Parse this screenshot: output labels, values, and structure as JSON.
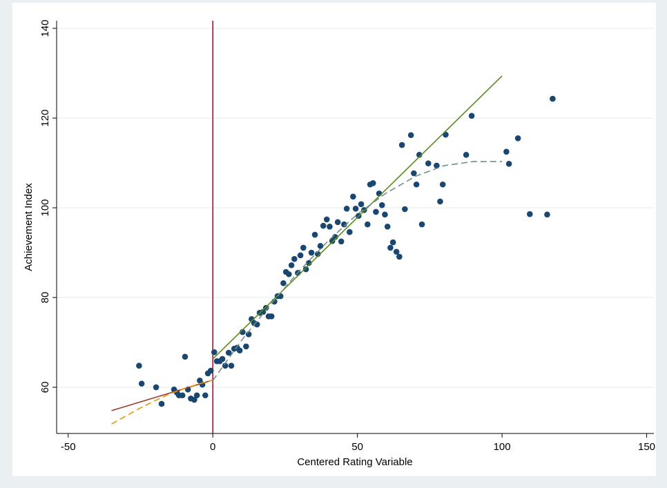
{
  "chart_data": {
    "type": "scatter",
    "xlabel": "Centered Rating Variable",
    "ylabel": "Achievement Index",
    "xlim": [
      -54,
      152.5
    ],
    "ylim": [
      49.7,
      141.7
    ],
    "xticks": [
      -50,
      0,
      50,
      100,
      150
    ],
    "yticks": [
      60,
      80,
      100,
      120,
      140
    ],
    "grid": true,
    "points": {
      "color": "#1a476f",
      "x": [
        -25.5,
        -24.6,
        -19.6,
        -17.7,
        -13.4,
        -12.4,
        -11.7,
        -10.5,
        -9.6,
        -8.6,
        -7.6,
        -6.4,
        -5.5,
        -4.5,
        -3.6,
        -2.6,
        -1.7,
        -0.7,
        0.5,
        1.4,
        2.4,
        3.3,
        4.3,
        5.5,
        6.4,
        7.4,
        8.4,
        9.3,
        10.3,
        11.5,
        12.4,
        13.4,
        14.3,
        15.3,
        16.2,
        17.4,
        18.4,
        19.3,
        20.3,
        21.3,
        22.4,
        23.4,
        24.4,
        25.3,
        26.3,
        27.2,
        28.2,
        29.4,
        30.3,
        31.3,
        32.2,
        33.2,
        34.1,
        35.3,
        36.3,
        37.2,
        38.2,
        39.4,
        40.4,
        41.3,
        42.3,
        43.2,
        44.4,
        45.4,
        46.3,
        47.3,
        48.5,
        49.4,
        50.4,
        51.3,
        52.3,
        53.5,
        54.4,
        55.4,
        56.4,
        57.5,
        58.5,
        59.5,
        60.4,
        61.4,
        62.3,
        63.5,
        64.5,
        65.4,
        66.4,
        68.5,
        69.5,
        70.4,
        71.4,
        72.3,
        74.5,
        77.4,
        78.6,
        79.5,
        80.5,
        87.6,
        89.5,
        101.5,
        102.4,
        105.5,
        109.6,
        115.6,
        117.5
      ],
      "y": [
        64.8,
        60.8,
        60.0,
        56.3,
        59.5,
        58.8,
        58.2,
        58.2,
        66.8,
        59.5,
        57.5,
        57.2,
        58.2,
        61.5,
        60.6,
        58.2,
        63.1,
        63.7,
        67.8,
        65.8,
        65.8,
        66.3,
        64.8,
        67.7,
        64.8,
        68.6,
        68.8,
        68.2,
        72.3,
        69.1,
        71.8,
        75.2,
        74.3,
        74.0,
        76.6,
        76.8,
        77.7,
        75.8,
        75.8,
        79.1,
        80.3,
        80.3,
        83.2,
        85.7,
        85.2,
        87.2,
        88.6,
        85.5,
        89.4,
        91.1,
        86.3,
        87.7,
        90.0,
        94.0,
        89.7,
        91.5,
        96.0,
        97.4,
        95.8,
        92.6,
        93.5,
        96.8,
        92.5,
        96.3,
        99.8,
        94.6,
        102.5,
        99.8,
        98.2,
        100.8,
        99.5,
        96.3,
        105.2,
        105.5,
        99.1,
        103.2,
        100.6,
        98.5,
        95.8,
        91.1,
        92.3,
        90.2,
        89.1,
        114.0,
        99.7,
        116.2,
        107.7,
        105.2,
        111.8,
        96.3,
        109.9,
        109.4,
        101.4,
        105.2,
        116.3,
        111.8,
        120.5,
        112.5,
        109.8,
        115.5,
        98.6,
        98.5,
        124.3
      ]
    },
    "fits": [
      {
        "color": "#9c3a2a",
        "dashed": false,
        "x": [
          -35,
          0
        ],
        "y": [
          54.8,
          61.6
        ]
      },
      {
        "color": "#e8950f",
        "dashed": true,
        "x": [
          -35,
          -30,
          -25,
          -20,
          -15,
          -10,
          -5,
          0
        ],
        "y": [
          51.8,
          53.6,
          55.4,
          57.0,
          58.5,
          59.7,
          60.7,
          61.6
        ]
      },
      {
        "color": "#5a8a1e",
        "dashed": false,
        "x": [
          0,
          100
        ],
        "y": [
          66.3,
          129.4
        ]
      },
      {
        "color": "#6f8e87",
        "dashed": true,
        "x": [
          0,
          10,
          20,
          30,
          40,
          50,
          60,
          70,
          80,
          90,
          100
        ],
        "y": [
          61.5,
          70.5,
          78.5,
          86.0,
          92.7,
          98.6,
          103.3,
          107.0,
          109.4,
          110.3,
          110.3
        ]
      }
    ],
    "vline": {
      "x": 0,
      "color": "#a0183f"
    }
  }
}
